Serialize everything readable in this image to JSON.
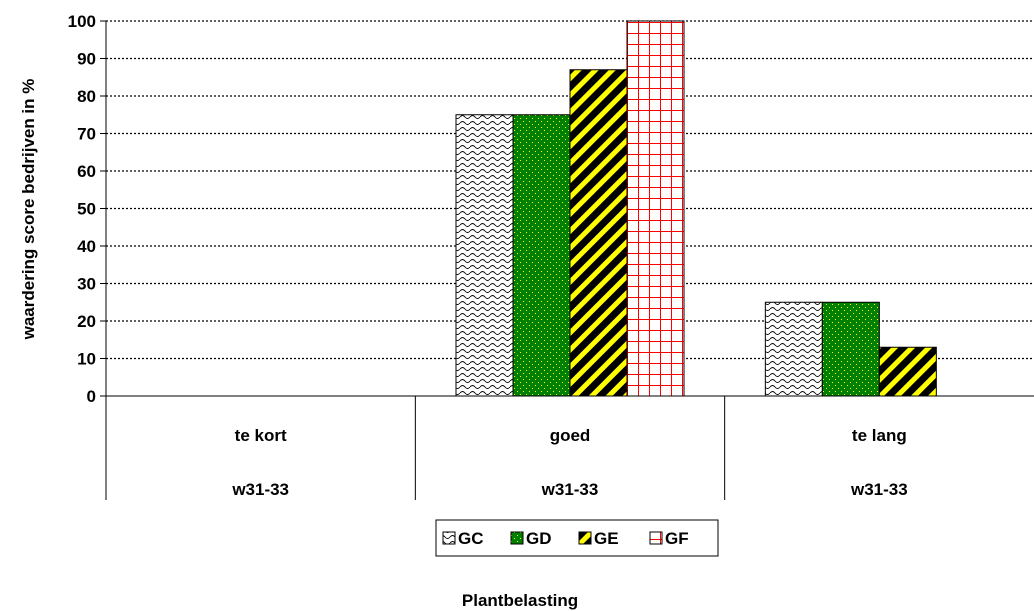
{
  "chart_data": {
    "type": "bar",
    "categories": [
      "te kort",
      "goed",
      "te lang"
    ],
    "category_sublabels": [
      "w31-33",
      "w31-33",
      "w31-33"
    ],
    "series": [
      {
        "name": "GC",
        "values": [
          0,
          75,
          25
        ],
        "pattern": "wave",
        "color": "#ffffff",
        "fg": "#000000"
      },
      {
        "name": "GD",
        "values": [
          0,
          75,
          25
        ],
        "pattern": "dots",
        "color": "#008000",
        "fg": "#ffff00"
      },
      {
        "name": "GE",
        "values": [
          0,
          87,
          13
        ],
        "pattern": "diagonal",
        "color": "#000000",
        "fg": "#ffff00"
      },
      {
        "name": "GF",
        "values": [
          0,
          100,
          0
        ],
        "pattern": "grid",
        "color": "#ffffff",
        "fg": "#ff0000"
      }
    ],
    "yticks": [
      "0",
      "10",
      "20",
      "30",
      "40",
      "50",
      "60",
      "70",
      "80",
      "90",
      "100"
    ],
    "ylim": [
      0,
      100
    ],
    "ylabel": "waardering score bedrijven in %",
    "xlabel": "Plantbelasting",
    "grid": true,
    "legend_position": "bottom-center"
  }
}
